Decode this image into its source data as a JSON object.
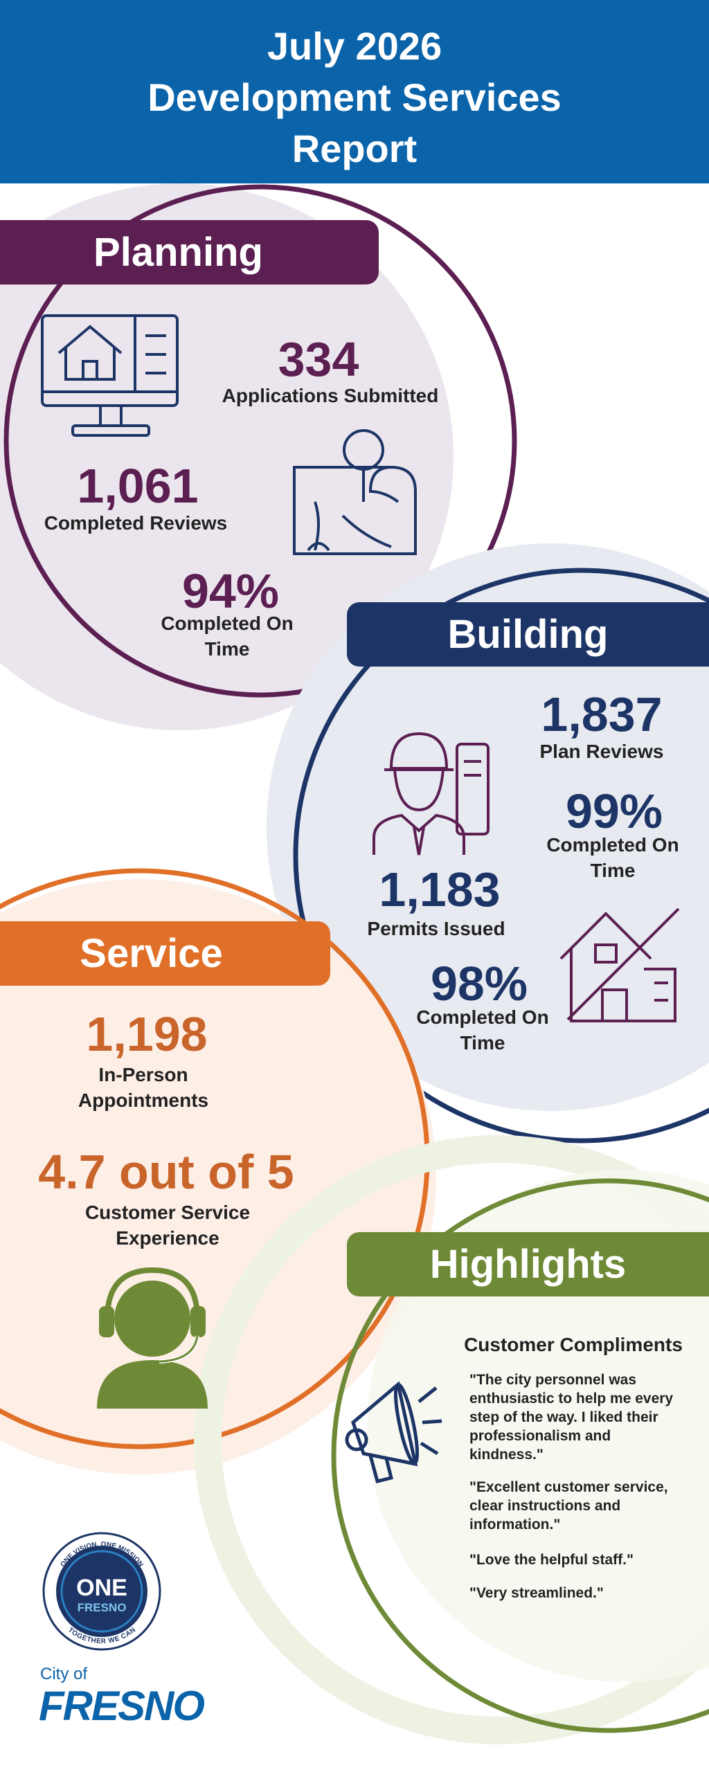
{
  "header": {
    "title_lines": [
      "July 2026",
      "Development Services",
      "Report"
    ]
  },
  "planning": {
    "heading": "Planning",
    "stats": [
      {
        "value": "334",
        "label": "Applications Submitted"
      },
      {
        "value": "1,061",
        "label": "Completed Reviews"
      },
      {
        "value": "94%",
        "label": "Completed On Time"
      }
    ]
  },
  "building": {
    "heading": "Building",
    "stats": [
      {
        "value": "1,837",
        "label": "Plan Reviews"
      },
      {
        "value": "99%",
        "label": "Completed On Time"
      },
      {
        "value": "1,183",
        "label": "Permits Issued"
      },
      {
        "value": "98%",
        "label": "Completed On Time"
      }
    ]
  },
  "service": {
    "heading": "Service",
    "stats": [
      {
        "value": "1,198",
        "label": "In-Person Appointments"
      },
      {
        "value": "4.7 out of 5",
        "label": "Customer Service Experience"
      }
    ]
  },
  "highlights": {
    "heading": "Highlights",
    "subheading": "Customer Compliments",
    "quotes": [
      "\"The city personnel was enthusiastic to help me every step of the way. I liked their professionalism and kindness.\"",
      "\"Excellent customer service, clear instructions and information.\"",
      "\"Love the helpful staff.\"",
      "\"Very streamlined.\""
    ]
  },
  "logo": {
    "ring_top": "ONE VISION. ONE MISSION",
    "main": "ONE",
    "sub": "FRESNO",
    "ring_bottom": "TOGETHER WE CAN"
  },
  "city": {
    "prefix": "City of",
    "name": "FRESNO"
  }
}
